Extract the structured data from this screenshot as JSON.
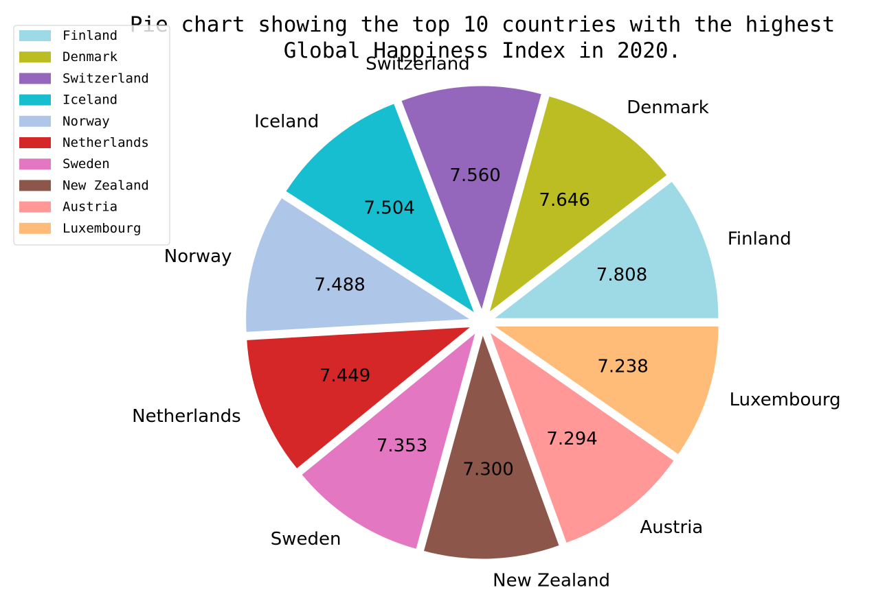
{
  "chart_data": {
    "type": "pie",
    "title": "Pie chart showing the top 10 countries with the highest Global Happiness Index in 2020.",
    "title_lines": [
      "Pie chart showing the top 10 countries with the highest",
      "Global Happiness Index in 2020."
    ],
    "categories": [
      "Finland",
      "Denmark",
      "Switzerland",
      "Iceland",
      "Norway",
      "Netherlands",
      "Sweden",
      "New Zealand",
      "Austria",
      "Luxembourg"
    ],
    "values": [
      7.808,
      7.646,
      7.56,
      7.504,
      7.488,
      7.449,
      7.353,
      7.3,
      7.294,
      7.238
    ],
    "value_labels": [
      "7.808",
      "7.646",
      "7.560",
      "7.504",
      "7.488",
      "7.449",
      "7.353",
      "7.300",
      "7.294",
      "7.238"
    ],
    "colors": [
      "#9edae5",
      "#bcbd22",
      "#9467bd",
      "#17becf",
      "#aec7e8",
      "#d62728",
      "#e377c2",
      "#8c564b",
      "#ff9896",
      "#ffbb78"
    ],
    "legend": {
      "placement": "upper-left",
      "entries": [
        "Finland",
        "Denmark",
        "Switzerland",
        "Iceland",
        "Norway",
        "Netherlands",
        "Sweden",
        "New Zealand",
        "Austria",
        "Luxembourg"
      ]
    },
    "start_angle_deg": 0,
    "direction": "counterclockwise",
    "exploded": true
  }
}
